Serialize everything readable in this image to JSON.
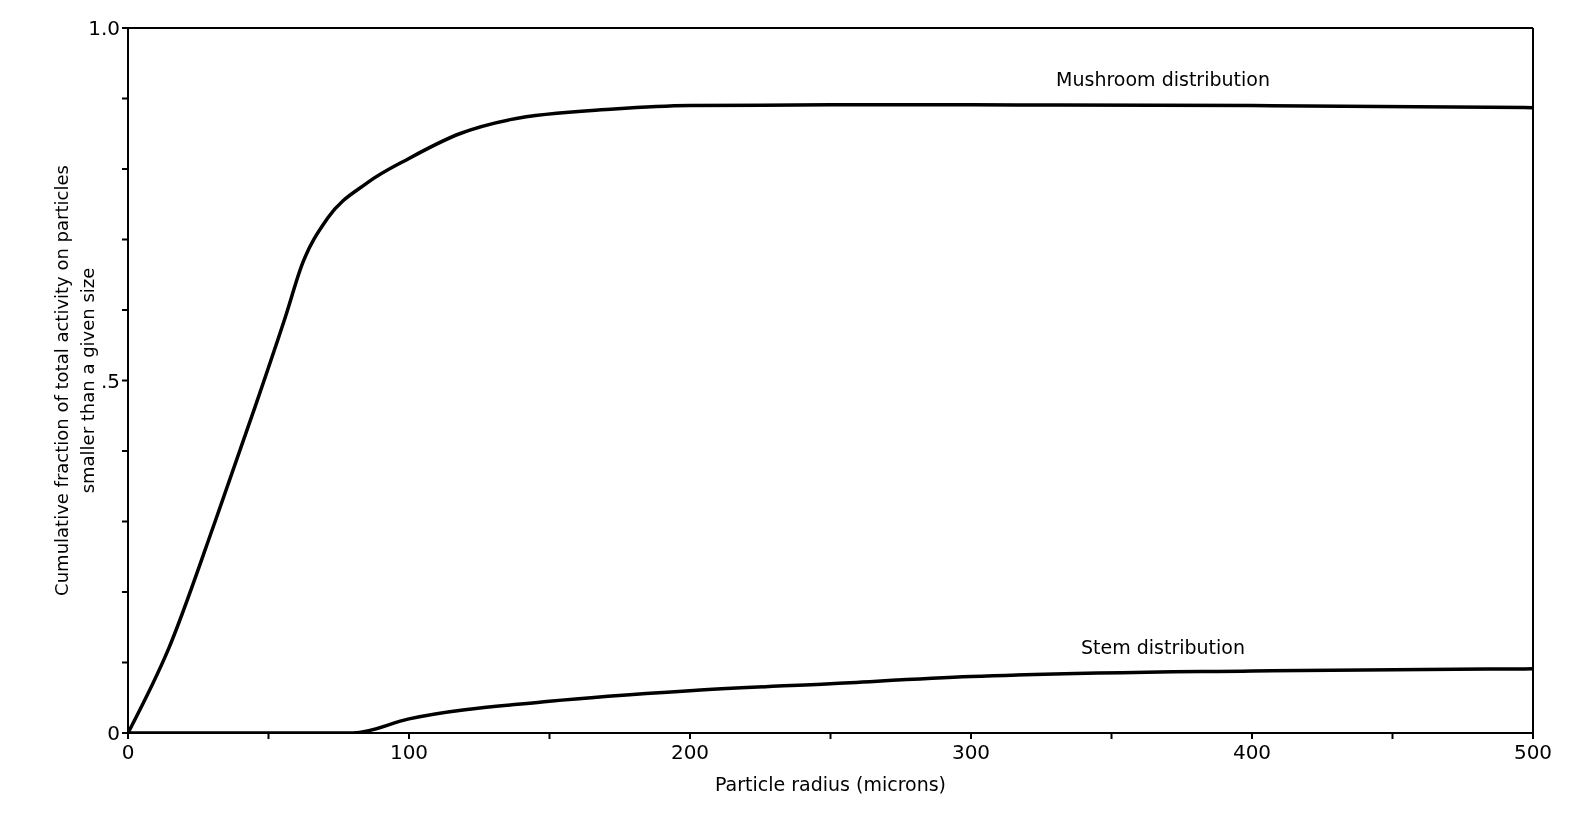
{
  "chart_data": {
    "type": "line",
    "xlabel": "Particle radius (microns)",
    "ylabel": "Cumulative fraction of total activity on particles\nsmaller than a given size",
    "xlim": [
      0,
      500
    ],
    "xticks": [
      0,
      {
        "value": 50,
        "label": null
      },
      100,
      {
        "value": 150,
        "label": null
      },
      200,
      {
        "value": 250,
        "label": null
      },
      300,
      {
        "value": 350,
        "label": null
      },
      400,
      {
        "value": 450,
        "label": null
      },
      500
    ],
    "ylim": [
      0,
      1
    ],
    "yticks": [
      {
        "value": 0,
        "label": "0"
      },
      {
        "value": 0.1,
        "label": null
      },
      {
        "value": 0.2,
        "label": null
      },
      {
        "value": 0.3,
        "label": null
      },
      {
        "value": 0.4,
        "label": null
      },
      {
        "value": 0.5,
        "label": ".5"
      },
      {
        "value": 0.6,
        "label": null
      },
      {
        "value": 0.7,
        "label": null
      },
      {
        "value": 0.8,
        "label": null
      },
      {
        "value": 0.9,
        "label": null
      },
      {
        "value": 1,
        "label": "1.0"
      }
    ],
    "legend": false,
    "marker": "none",
    "line_style": "solid",
    "series": [
      {
        "color": "#000000",
        "x": [
          0,
          14.5,
          31,
          45,
          56,
          62,
          71,
          85,
          100,
          118,
          136,
          173,
          200,
          250,
          300,
          400,
          500
        ],
        "values": [
          0,
          0.12,
          0.3,
          0.46,
          0.59,
          0.665,
          0.73,
          0.78,
          0.815,
          0.85,
          0.87,
          0.885,
          0.89,
          0.891,
          0.891,
          0.89,
          0.887
        ]
      },
      {
        "color": "#000000",
        "x": [
          0,
          80,
          100,
          150,
          200,
          250,
          300,
          400,
          500
        ],
        "values": [
          0,
          0,
          0.02,
          0.045,
          0.06,
          0.07,
          0.08,
          0.088,
          0.091
        ]
      }
    ],
    "annotations": [
      "Mushroom distribution",
      "Stem distribution"
    ]
  }
}
